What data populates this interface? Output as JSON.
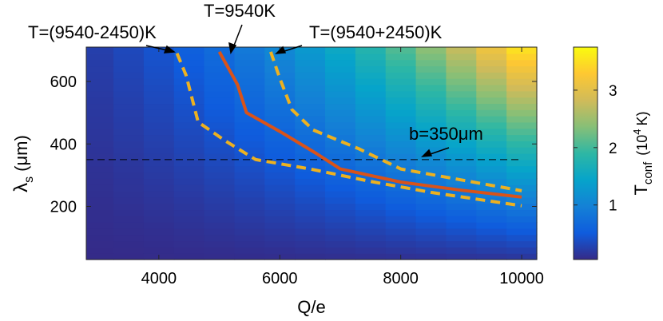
{
  "chart_data": {
    "type": "heatmap",
    "xlabel": "Q/e",
    "ylabel_main": "λ",
    "ylabel_sub": "s",
    "ylabel_unit": "(μm)",
    "xticks": [
      4000,
      6000,
      8000,
      10000
    ],
    "yticks": [
      200,
      400,
      600
    ],
    "xlim": [
      2800,
      10250
    ],
    "ylim": [
      30,
      710
    ],
    "colorbar": {
      "label_main": "T",
      "label_sub": "conf",
      "label_unit_pre": "(10",
      "label_unit_exp": "4",
      "label_unit_post": "K)",
      "ticks": [
        1,
        2,
        3
      ],
      "range": [
        0.05,
        3.75
      ],
      "colormap": [
        "#352a87",
        "#0f5cdd",
        "#1481d6",
        "#06a4ca",
        "#2eb7a4",
        "#87bf77",
        "#d1bb59",
        "#fec832",
        "#f9fb0e"
      ]
    },
    "grid": {
      "x_start": 3000,
      "x_step": 500,
      "x_count": 15,
      "y_start": 30,
      "y_step": 20,
      "y_count": 34
    },
    "series": [
      {
        "name": "T=9540K",
        "color": "#d95319",
        "style": "solid",
        "points": [
          [
            5000,
            695
          ],
          [
            5300,
            590
          ],
          [
            5450,
            500
          ],
          [
            6000,
            440
          ],
          [
            6600,
            370
          ],
          [
            7000,
            320
          ],
          [
            8000,
            278
          ],
          [
            9000,
            252
          ],
          [
            10000,
            230
          ]
        ]
      },
      {
        "name": "T=(9540-2450)K",
        "color": "#edb120",
        "style": "dashed",
        "points": [
          [
            4300,
            690
          ],
          [
            4450,
            620
          ],
          [
            4650,
            470
          ],
          [
            5100,
            410
          ],
          [
            5600,
            350
          ],
          [
            6500,
            320
          ],
          [
            7500,
            280
          ],
          [
            8500,
            245
          ],
          [
            10000,
            202
          ]
        ]
      },
      {
        "name": "T=(9540+2450)K",
        "color": "#edb120",
        "style": "dashed",
        "points": [
          [
            5850,
            695
          ],
          [
            6000,
            610
          ],
          [
            6200,
            510
          ],
          [
            6550,
            445
          ],
          [
            7300,
            385
          ],
          [
            8000,
            320
          ],
          [
            9000,
            285
          ],
          [
            10000,
            250
          ]
        ]
      }
    ],
    "reference_line": {
      "label": "b=350μm",
      "y": 350,
      "x_range": [
        2800,
        10000
      ],
      "color": "#000000"
    },
    "annotations": [
      {
        "text": "T=(9540-2450)K"
      },
      {
        "text": "T=9540K"
      },
      {
        "text": "T=(9540+2450)K"
      },
      {
        "text": "b=350μm"
      }
    ]
  }
}
